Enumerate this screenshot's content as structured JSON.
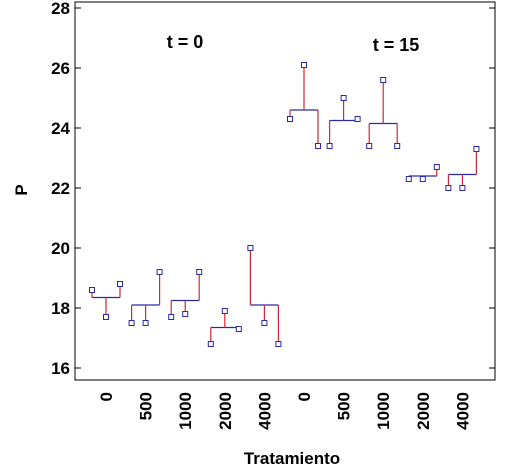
{
  "chart_data": {
    "type": "scatter",
    "xlabel": "Tratamiento",
    "ylabel": "P",
    "ylim": [
      15.6,
      28.2
    ],
    "yticks": [
      16,
      18,
      20,
      22,
      24,
      26,
      28
    ],
    "grid": false,
    "annotations": [
      "t = 0",
      "t = 15"
    ],
    "categories": [
      "0",
      "500",
      "1000",
      "2000",
      "4000",
      "0",
      "500",
      "1000",
      "2000",
      "4000"
    ],
    "groups": [
      {
        "label": "0",
        "time": "t = 0",
        "mean": 18.35,
        "values": [
          18.6,
          17.7,
          18.8
        ]
      },
      {
        "label": "500",
        "time": "t = 0",
        "mean": 18.1,
        "values": [
          17.5,
          17.5,
          19.2
        ]
      },
      {
        "label": "1000",
        "time": "t = 0",
        "mean": 18.25,
        "values": [
          17.7,
          17.8,
          19.2
        ]
      },
      {
        "label": "2000",
        "time": "t = 0",
        "mean": 17.35,
        "values": [
          16.8,
          17.9,
          17.3
        ]
      },
      {
        "label": "4000",
        "time": "t = 0",
        "mean": 18.1,
        "values": [
          20.0,
          17.5,
          16.8
        ]
      },
      {
        "label": "0",
        "time": "t = 15",
        "mean": 24.6,
        "values": [
          24.3,
          26.1,
          23.4
        ]
      },
      {
        "label": "500",
        "time": "t = 15",
        "mean": 24.25,
        "values": [
          23.4,
          25.0,
          24.3
        ]
      },
      {
        "label": "1000",
        "time": "t = 15",
        "mean": 24.15,
        "values": [
          23.4,
          25.6,
          23.4
        ]
      },
      {
        "label": "2000",
        "time": "t = 15",
        "mean": 22.4,
        "values": [
          22.3,
          22.3,
          22.7
        ]
      },
      {
        "label": "4000",
        "time": "t = 15",
        "mean": 22.45,
        "values": [
          22.0,
          22.0,
          23.3
        ]
      }
    ]
  }
}
